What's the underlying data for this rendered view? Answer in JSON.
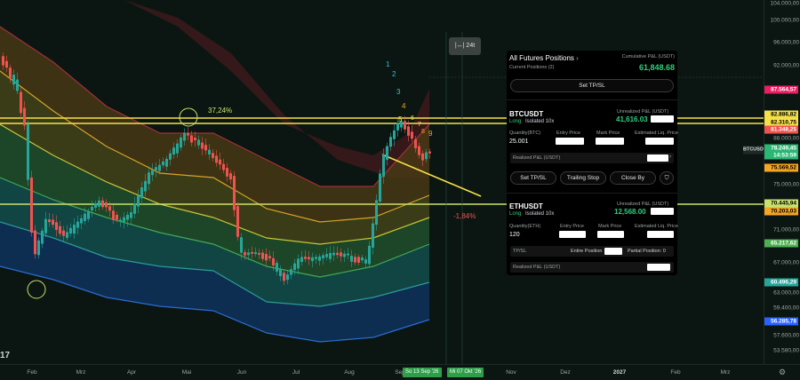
{
  "price_scale": {
    "ticks": [
      "104.000,00",
      "100.000,00",
      "96.000,00",
      "92.000,00",
      "88.000,00",
      "75.000,00",
      "71.000,00",
      "67.000,00",
      "63.000,00",
      "59.400,00",
      "57.600,00",
      "53.580,00"
    ],
    "badges": [
      {
        "label": "87.564,57",
        "color": "#e91e63",
        "text_color": "#ffffff"
      },
      {
        "label": "82.886,82",
        "color": "#f5e04a",
        "text_color": "#000000"
      },
      {
        "label": "82.310,75",
        "color": "#f5e04a",
        "text_color": "#000000"
      },
      {
        "label": "81.348,25",
        "color": "#ef5350",
        "text_color": "#ffffff"
      },
      {
        "label": "78.249,45",
        "color": "#2bb673",
        "text_color": "#ffffff"
      },
      {
        "label": "14:53:59",
        "color": "#2bb673",
        "text_color": "#ffffff"
      },
      {
        "label": "75.569,52",
        "color": "#f5a623",
        "text_color": "#000000"
      },
      {
        "label": "70.445,94",
        "color": "#c9e26d",
        "text_color": "#000000"
      },
      {
        "label": "70.203,03",
        "color": "#f5a623",
        "text_color": "#000000"
      },
      {
        "label": "65.217,62",
        "color": "#4caf50",
        "text_color": "#ffffff"
      },
      {
        "label": "60.496,29",
        "color": "#26a69a",
        "text_color": "#ffffff"
      },
      {
        "label": "56.285,78",
        "color": "#2962ff",
        "text_color": "#ffffff"
      }
    ],
    "symbol_badge": "BTCUSD"
  },
  "time_axis": {
    "ticks": [
      "Feb",
      "Mrz",
      "Apr",
      "Mai",
      "Jun",
      "Jul",
      "Aug",
      "Sep",
      "Nov",
      "Dez",
      "2027",
      "Feb",
      "Mrz"
    ],
    "range_badges": [
      "So 13 Sep '26",
      "Mi 07 Okt '26"
    ]
  },
  "annotations": {
    "pct_top": "37,24%",
    "pct_bottom": "-1,84%",
    "waves": [
      "1",
      "2",
      "3",
      "4",
      "5",
      "6",
      "7",
      "8",
      "9"
    ],
    "tool_label": "24t"
  },
  "logo": "17",
  "panel": {
    "title": "All Futures Positions",
    "title_arrow": "›",
    "current_positions": "Current Positions (2)",
    "cumulative_label": "Cumulative P&L (USDT)",
    "cumulative_value": "61,848.68",
    "set_tpsl_top": "Set TP/SL",
    "btc": {
      "symbol": "BTCUSDT",
      "side": "Long",
      "mode": "Isolated 10x",
      "unrealized_label": "Unrealized P&L (USDT)",
      "unrealized_value": "41,616.03",
      "quantity_label": "Quantity(BTC)",
      "quantity": "25.001",
      "entry_label": "Entry Price",
      "mark_label": "Mark Price",
      "liq_label": "Estimated Liq. Price",
      "realized_label": "Realized P&L (USDT)",
      "btn_tpsl": "Set TP/SL",
      "btn_trailing": "Trailing Stop",
      "btn_close": "Close By"
    },
    "eth": {
      "symbol": "ETHUSDT",
      "side": "Long",
      "mode": "Isolated 10x",
      "unrealized_label": "Unrealized P&L (USDT)",
      "unrealized_value": "12,568.00",
      "quantity_label": "Quantity(ETH)",
      "quantity": "120",
      "entry_label": "Entry Price",
      "mark_label": "Mark Price",
      "liq_label": "Estimated Liq. Price",
      "tpsl_label": "TP/SL",
      "entire_position": "Entire Position",
      "partial_position": "Partial Position: 0",
      "realized_label": "Realized P&L (USDT)"
    }
  }
}
